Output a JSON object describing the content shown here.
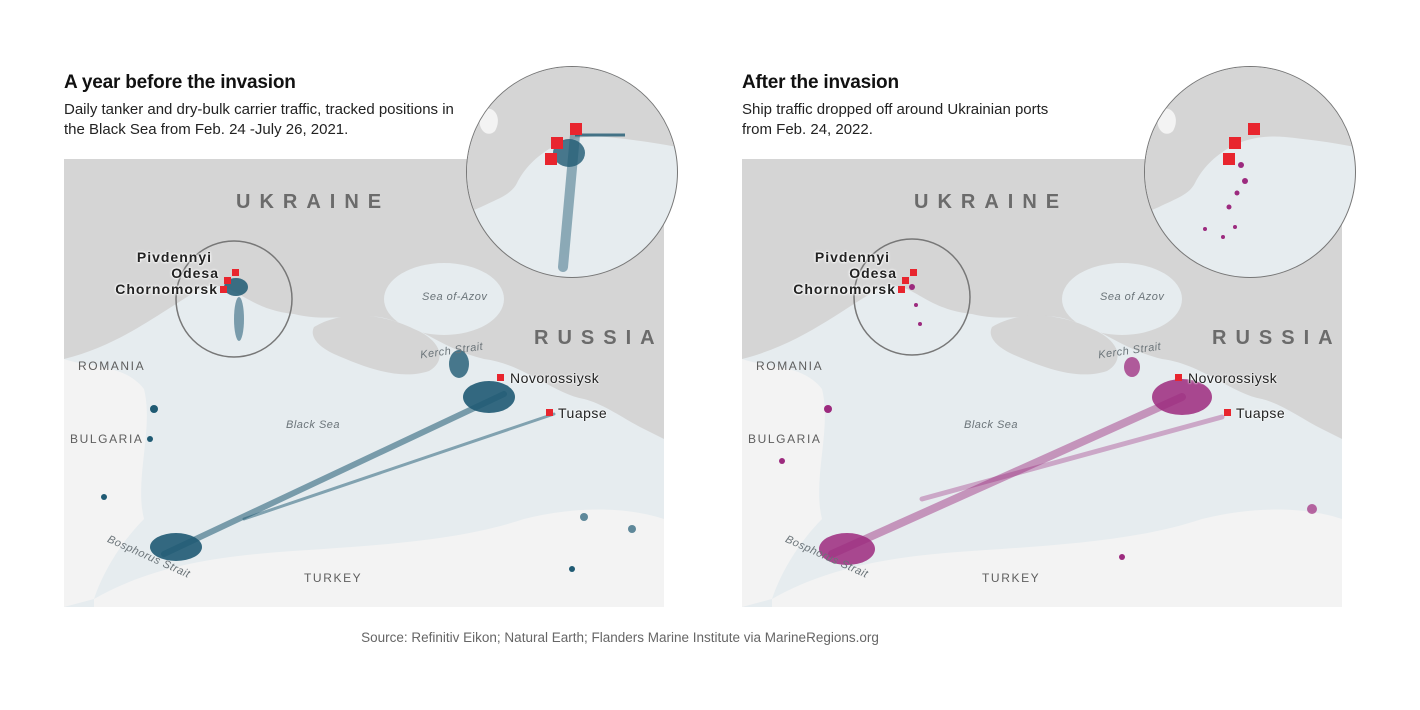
{
  "panels": [
    {
      "title": "A year before the invasion",
      "subtitle": "Daily tanker and dry-bulk carrier traffic, tracked positions in the Black Sea from Feb. 24 -July 26, 2021.",
      "dot_color": "#1f5a73",
      "inset_note": "magnified view of Odesa-area ports",
      "traffic_level": "dense"
    },
    {
      "title": "After the invasion",
      "subtitle": "Ship traffic dropped off around Ukrainian ports from Feb. 24, 2022.",
      "dot_color": "#9c2a7e",
      "inset_note": "magnified view of Odesa-area ports",
      "traffic_level": "sparse near Ukraine"
    }
  ],
  "labels": {
    "ukraine": "UKRAINE",
    "russia": "RUSSIA",
    "romania": "ROMANIA",
    "bulgaria": "BULGARIA",
    "turkey": "TURKEY",
    "black_sea": "Black Sea",
    "sea_of_azov_left": "Sea of-Azov",
    "sea_of_azov_right": "Sea of Azov",
    "kerch_strait": "Kerch Strait",
    "bosphorus_strait": "Bosphorus Strait"
  },
  "ports": {
    "pivdennyi": "Pivdennyi",
    "odesa": "Odesa",
    "chornomorsk": "Chornomorsk",
    "novorossiysk": "Novorossiysk",
    "tuapse": "Tuapse"
  },
  "colors": {
    "port_marker": "#e8252e",
    "land": "#d5d5d5",
    "sea": "#e6ecef"
  },
  "source": "Source: Refinitiv Eikon; Natural Earth; Flanders Marine Institute via MarineRegions.org"
}
